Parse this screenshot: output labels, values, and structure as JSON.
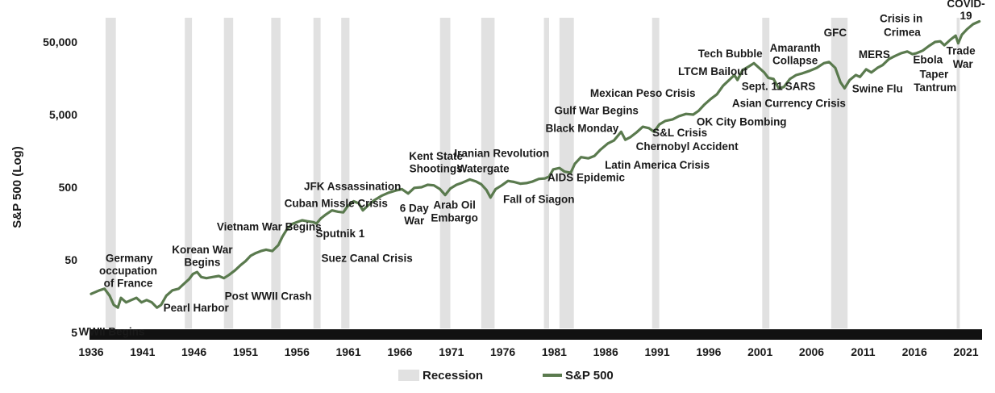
{
  "chart_data": {
    "type": "line",
    "title": "",
    "xlabel": "",
    "ylabel": "S&P 500 (Log)",
    "y_scale": "log",
    "xlim": [
      1936,
      2022.5
    ],
    "ylim": [
      5,
      100000
    ],
    "xticks": [
      "1936",
      "1941",
      "1946",
      "1951",
      "1956",
      "1961",
      "1966",
      "1971",
      "1976",
      "1981",
      "1986",
      "1991",
      "1996",
      "2001",
      "2006",
      "2011",
      "2016",
      "2021"
    ],
    "yticks": [
      {
        "value": 5,
        "label": "5"
      },
      {
        "value": 50,
        "label": "50"
      },
      {
        "value": 500,
        "label": "500"
      },
      {
        "value": 5000,
        "label": "5,000"
      },
      {
        "value": 50000,
        "label": "50,000"
      }
    ],
    "legend": {
      "position": "bottom",
      "entries": [
        {
          "label": "Recession",
          "kind": "shade"
        },
        {
          "label": "S&P 500",
          "kind": "line"
        }
      ]
    },
    "colors": {
      "line": "#5a7a4e",
      "recession": "#e1e1e1",
      "baseline": "#111111"
    },
    "recessions": [
      [
        1937.4,
        1938.4
      ],
      [
        1945.1,
        1945.8
      ],
      [
        1948.9,
        1949.8
      ],
      [
        1953.5,
        1954.4
      ],
      [
        1957.6,
        1958.3
      ],
      [
        1960.3,
        1961.1
      ],
      [
        1969.9,
        1970.9
      ],
      [
        1973.9,
        1975.2
      ],
      [
        1980.0,
        1980.5
      ],
      [
        1981.5,
        1982.9
      ],
      [
        1990.5,
        1991.2
      ],
      [
        2001.2,
        2001.9
      ],
      [
        2007.9,
        2009.5
      ],
      [
        2020.1,
        2020.4
      ]
    ],
    "series": [
      {
        "name": "S&P 500",
        "points": [
          [
            1936,
            17
          ],
          [
            1936.8,
            19
          ],
          [
            1937.3,
            20
          ],
          [
            1937.8,
            16
          ],
          [
            1938.2,
            12
          ],
          [
            1938.6,
            11
          ],
          [
            1938.9,
            15
          ],
          [
            1939.4,
            13
          ],
          [
            1939.9,
            14
          ],
          [
            1940.4,
            15
          ],
          [
            1940.9,
            13
          ],
          [
            1941.4,
            14
          ],
          [
            1941.9,
            13
          ],
          [
            1942.4,
            11
          ],
          [
            1942.8,
            12
          ],
          [
            1943.3,
            16
          ],
          [
            1943.9,
            19
          ],
          [
            1944.5,
            20
          ],
          [
            1945.1,
            24
          ],
          [
            1945.5,
            27
          ],
          [
            1945.9,
            32
          ],
          [
            1946.3,
            34
          ],
          [
            1946.7,
            29
          ],
          [
            1947.2,
            28
          ],
          [
            1947.8,
            29
          ],
          [
            1948.4,
            30
          ],
          [
            1948.9,
            28
          ],
          [
            1949.4,
            31
          ],
          [
            1950.0,
            36
          ],
          [
            1950.5,
            42
          ],
          [
            1951.0,
            48
          ],
          [
            1951.5,
            57
          ],
          [
            1952.0,
            62
          ],
          [
            1952.5,
            66
          ],
          [
            1953.0,
            69
          ],
          [
            1953.6,
            66
          ],
          [
            1954.2,
            80
          ],
          [
            1954.6,
            105
          ],
          [
            1955.0,
            130
          ],
          [
            1955.5,
            155
          ],
          [
            1956.0,
            165
          ],
          [
            1956.5,
            175
          ],
          [
            1957.0,
            170
          ],
          [
            1957.6,
            165
          ],
          [
            1957.9,
            158
          ],
          [
            1958.3,
            185
          ],
          [
            1958.8,
            210
          ],
          [
            1959.4,
            240
          ],
          [
            1960.0,
            230
          ],
          [
            1960.5,
            225
          ],
          [
            1960.9,
            270
          ],
          [
            1961.5,
            320
          ],
          [
            1962.0,
            300
          ],
          [
            1962.4,
            240
          ],
          [
            1962.9,
            280
          ],
          [
            1963.5,
            330
          ],
          [
            1964.2,
            380
          ],
          [
            1964.9,
            420
          ],
          [
            1965.6,
            450
          ],
          [
            1966.2,
            470
          ],
          [
            1966.8,
            410
          ],
          [
            1967.4,
            490
          ],
          [
            1968.1,
            500
          ],
          [
            1968.7,
            540
          ],
          [
            1969.3,
            530
          ],
          [
            1969.9,
            470
          ],
          [
            1970.4,
            390
          ],
          [
            1970.9,
            480
          ],
          [
            1971.5,
            540
          ],
          [
            1972.1,
            580
          ],
          [
            1972.8,
            640
          ],
          [
            1973.4,
            600
          ],
          [
            1973.9,
            550
          ],
          [
            1974.4,
            460
          ],
          [
            1974.8,
            360
          ],
          [
            1975.3,
            470
          ],
          [
            1975.9,
            530
          ],
          [
            1976.5,
            610
          ],
          [
            1977.1,
            590
          ],
          [
            1977.7,
            560
          ],
          [
            1978.3,
            570
          ],
          [
            1978.9,
            600
          ],
          [
            1979.5,
            650
          ],
          [
            1980.1,
            660
          ],
          [
            1980.5,
            700
          ],
          [
            1980.9,
            880
          ],
          [
            1981.5,
            920
          ],
          [
            1982.0,
            820
          ],
          [
            1982.6,
            790
          ],
          [
            1983.0,
            1050
          ],
          [
            1983.6,
            1300
          ],
          [
            1984.3,
            1250
          ],
          [
            1984.9,
            1350
          ],
          [
            1985.5,
            1650
          ],
          [
            1986.2,
            2000
          ],
          [
            1986.8,
            2200
          ],
          [
            1987.5,
            2900
          ],
          [
            1987.9,
            2250
          ],
          [
            1988.4,
            2450
          ],
          [
            1989.0,
            2850
          ],
          [
            1989.6,
            3400
          ],
          [
            1990.2,
            3250
          ],
          [
            1990.7,
            2900
          ],
          [
            1991.2,
            3650
          ],
          [
            1991.8,
            4100
          ],
          [
            1992.5,
            4300
          ],
          [
            1993.1,
            4750
          ],
          [
            1993.8,
            5100
          ],
          [
            1994.5,
            5000
          ],
          [
            1995.0,
            5600
          ],
          [
            1995.6,
            6900
          ],
          [
            1996.2,
            8200
          ],
          [
            1996.8,
            9500
          ],
          [
            1997.4,
            12500
          ],
          [
            1998.0,
            15000
          ],
          [
            1998.5,
            17500
          ],
          [
            1998.8,
            15000
          ],
          [
            1999.3,
            20500
          ],
          [
            1999.9,
            23000
          ],
          [
            2000.4,
            25500
          ],
          [
            2000.9,
            22000
          ],
          [
            2001.4,
            19000
          ],
          [
            2001.8,
            16000
          ],
          [
            2002.3,
            15500
          ],
          [
            2002.8,
            11500
          ],
          [
            2003.3,
            12000
          ],
          [
            2003.9,
            15500
          ],
          [
            2004.5,
            17500
          ],
          [
            2005.1,
            18500
          ],
          [
            2005.8,
            20000
          ],
          [
            2006.5,
            22000
          ],
          [
            2007.2,
            25500
          ],
          [
            2007.7,
            26500
          ],
          [
            2008.3,
            22000
          ],
          [
            2008.8,
            14000
          ],
          [
            2009.2,
            11500
          ],
          [
            2009.7,
            15000
          ],
          [
            2010.3,
            17500
          ],
          [
            2010.7,
            16500
          ],
          [
            2011.3,
            21000
          ],
          [
            2011.8,
            19000
          ],
          [
            2012.4,
            22000
          ],
          [
            2012.9,
            24000
          ],
          [
            2013.5,
            29000
          ],
          [
            2014.1,
            32000
          ],
          [
            2014.7,
            35000
          ],
          [
            2015.3,
            37000
          ],
          [
            2015.8,
            34000
          ],
          [
            2016.2,
            35000
          ],
          [
            2016.8,
            38000
          ],
          [
            2017.4,
            44000
          ],
          [
            2018.0,
            50000
          ],
          [
            2018.5,
            51000
          ],
          [
            2018.9,
            45000
          ],
          [
            2019.5,
            54000
          ],
          [
            2020.0,
            61000
          ],
          [
            2020.25,
            48000
          ],
          [
            2020.6,
            63000
          ],
          [
            2021.1,
            75000
          ],
          [
            2021.7,
            88000
          ],
          [
            2022.3,
            96000
          ]
        ]
      }
    ],
    "annotations": [
      {
        "text": "WWII Begins",
        "x": 1938.0,
        "y": 5.2
      },
      {
        "text": "Germany",
        "x": 1939.7,
        "y": 53
      },
      {
        "text": "occupation",
        "x": 1939.6,
        "y": 36
      },
      {
        "text": "of France",
        "x": 1939.6,
        "y": 24
      },
      {
        "text": "Pearl Harbor",
        "x": 1946.2,
        "y": 11
      },
      {
        "text": "Korean War",
        "x": 1946.8,
        "y": 70
      },
      {
        "text": "Begins",
        "x": 1946.8,
        "y": 47
      },
      {
        "text": "Post WWII Crash",
        "x": 1953.2,
        "y": 16
      },
      {
        "text": "Vietnam War Begins",
        "x": 1953.3,
        "y": 145
      },
      {
        "text": "Suez Canal Crisis",
        "x": 1962.8,
        "y": 53
      },
      {
        "text": "Cuban Missle Crisis",
        "x": 1959.8,
        "y": 305
      },
      {
        "text": "JFK Assassination",
        "x": 1961.4,
        "y": 520
      },
      {
        "text": "Sputnik 1",
        "x": 1960.2,
        "y": 116
      },
      {
        "text": "6 Day",
        "x": 1967.4,
        "y": 262
      },
      {
        "text": "War",
        "x": 1967.4,
        "y": 176
      },
      {
        "text": "Kent State",
        "x": 1969.5,
        "y": 1360
      },
      {
        "text": "Shootings",
        "x": 1969.5,
        "y": 910
      },
      {
        "text": "Iranian Revolution",
        "x": 1975.9,
        "y": 1480
      },
      {
        "text": "Watergate",
        "x": 1974.1,
        "y": 910
      },
      {
        "text": "Arab Oil",
        "x": 1971.3,
        "y": 290
      },
      {
        "text": "Embargo",
        "x": 1971.3,
        "y": 192
      },
      {
        "text": "Fall of Siagon",
        "x": 1979.5,
        "y": 345
      },
      {
        "text": "AIDS Epidemic",
        "x": 1984.1,
        "y": 685
      },
      {
        "text": "Latin America Crisis",
        "x": 1991.0,
        "y": 1020
      },
      {
        "text": "Chernobyl Accident",
        "x": 1993.9,
        "y": 1850
      },
      {
        "text": "S&L Crisis",
        "x": 1993.2,
        "y": 2850
      },
      {
        "text": "Black Monday",
        "x": 1983.7,
        "y": 3280
      },
      {
        "text": "Gulf War Begins",
        "x": 1985.1,
        "y": 5750
      },
      {
        "text": "Mexican Peso Crisis",
        "x": 1989.6,
        "y": 9950
      },
      {
        "text": "OK City Bombing",
        "x": 1999.2,
        "y": 4000
      },
      {
        "text": "LTCM Bailout",
        "x": 1996.4,
        "y": 19800
      },
      {
        "text": "Tech Bubble",
        "x": 1998.1,
        "y": 35000
      },
      {
        "text": "Amaranth",
        "x": 2004.4,
        "y": 42000
      },
      {
        "text": "Collapse",
        "x": 2004.4,
        "y": 28200
      },
      {
        "text": "Sept. 11",
        "x": 2001.2,
        "y": 12400
      },
      {
        "text": "SARS",
        "x": 2004.9,
        "y": 12400
      },
      {
        "text": "Asian Currency Crisis",
        "x": 2003.8,
        "y": 7250
      },
      {
        "text": "GFC",
        "x": 2008.3,
        "y": 68000
      },
      {
        "text": "Swine Flu",
        "x": 2012.4,
        "y": 11500
      },
      {
        "text": "MERS",
        "x": 2012.1,
        "y": 34000
      },
      {
        "text": "Crisis in",
        "x": 2014.7,
        "y": 107000
      },
      {
        "text": "Crimea",
        "x": 2014.8,
        "y": 69000
      },
      {
        "text": "Ebola",
        "x": 2017.3,
        "y": 29000
      },
      {
        "text": "Taper",
        "x": 2017.9,
        "y": 18300
      },
      {
        "text": "Tantrum",
        "x": 2018.0,
        "y": 12000
      },
      {
        "text": "Trade",
        "x": 2020.5,
        "y": 38000
      },
      {
        "text": "War",
        "x": 2020.7,
        "y": 25000
      },
      {
        "text": "COVID-",
        "x": 2021.0,
        "y": 171000
      },
      {
        "text": "19",
        "x": 2021.0,
        "y": 116000
      }
    ]
  }
}
